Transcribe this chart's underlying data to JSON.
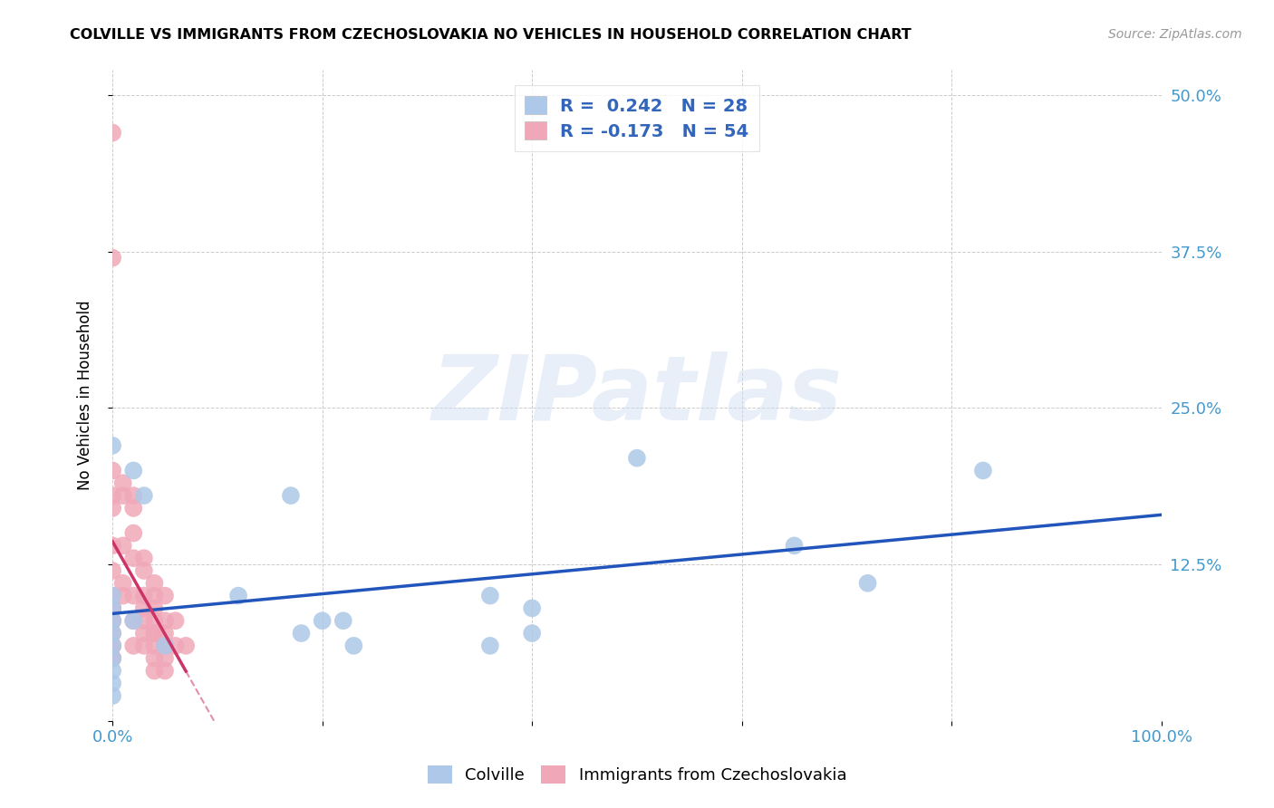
{
  "title": "COLVILLE VS IMMIGRANTS FROM CZECHOSLOVAKIA NO VEHICLES IN HOUSEHOLD CORRELATION CHART",
  "source": "Source: ZipAtlas.com",
  "ylabel": "No Vehicles in Household",
  "xlim": [
    0.0,
    1.0
  ],
  "ylim": [
    0.0,
    0.52
  ],
  "xticks": [
    0.0,
    0.2,
    0.4,
    0.6,
    0.8,
    1.0
  ],
  "xticklabels": [
    "0.0%",
    "",
    "",
    "",
    "",
    "100.0%"
  ],
  "yticks": [
    0.0,
    0.125,
    0.25,
    0.375,
    0.5
  ],
  "yticklabels_right": [
    "",
    "12.5%",
    "25.0%",
    "37.5%",
    "50.0%"
  ],
  "colville_R": 0.242,
  "colville_N": 28,
  "czech_R": -0.173,
  "czech_N": 54,
  "blue_color": "#adc8e8",
  "pink_color": "#f0a8b8",
  "blue_line_color": "#2255bb",
  "pink_line_color": "#cc3366",
  "watermark_text": "ZIPatlas",
  "colville_x": [
    0.0,
    0.0,
    0.0,
    0.0,
    0.0,
    0.0,
    0.0,
    0.0,
    0.0,
    0.0,
    0.02,
    0.02,
    0.03,
    0.05,
    0.12,
    0.17,
    0.18,
    0.2,
    0.22,
    0.23,
    0.36,
    0.36,
    0.4,
    0.4,
    0.5,
    0.65,
    0.72,
    0.83
  ],
  "colville_y": [
    0.22,
    0.1,
    0.09,
    0.08,
    0.07,
    0.06,
    0.05,
    0.04,
    0.03,
    0.02,
    0.2,
    0.08,
    0.18,
    0.06,
    0.1,
    0.18,
    0.07,
    0.08,
    0.08,
    0.06,
    0.1,
    0.06,
    0.09,
    0.07,
    0.21,
    0.14,
    0.11,
    0.2
  ],
  "czech_x": [
    0.0,
    0.0,
    0.0,
    0.0,
    0.0,
    0.0,
    0.0,
    0.0,
    0.0,
    0.0,
    0.0,
    0.0,
    0.0,
    0.0,
    0.0,
    0.0,
    0.0,
    0.01,
    0.01,
    0.01,
    0.01,
    0.01,
    0.02,
    0.02,
    0.02,
    0.02,
    0.02,
    0.02,
    0.02,
    0.03,
    0.03,
    0.03,
    0.03,
    0.03,
    0.03,
    0.03,
    0.04,
    0.04,
    0.04,
    0.04,
    0.04,
    0.04,
    0.04,
    0.04,
    0.04,
    0.05,
    0.05,
    0.05,
    0.05,
    0.05,
    0.05,
    0.06,
    0.06,
    0.07
  ],
  "czech_y": [
    0.47,
    0.37,
    0.2,
    0.18,
    0.17,
    0.14,
    0.12,
    0.1,
    0.09,
    0.09,
    0.08,
    0.08,
    0.07,
    0.06,
    0.06,
    0.05,
    0.05,
    0.19,
    0.18,
    0.14,
    0.11,
    0.1,
    0.18,
    0.17,
    0.15,
    0.13,
    0.1,
    0.08,
    0.06,
    0.13,
    0.12,
    0.1,
    0.09,
    0.08,
    0.07,
    0.06,
    0.11,
    0.1,
    0.09,
    0.08,
    0.07,
    0.07,
    0.06,
    0.05,
    0.04,
    0.1,
    0.08,
    0.07,
    0.06,
    0.05,
    0.04,
    0.08,
    0.06,
    0.06
  ]
}
